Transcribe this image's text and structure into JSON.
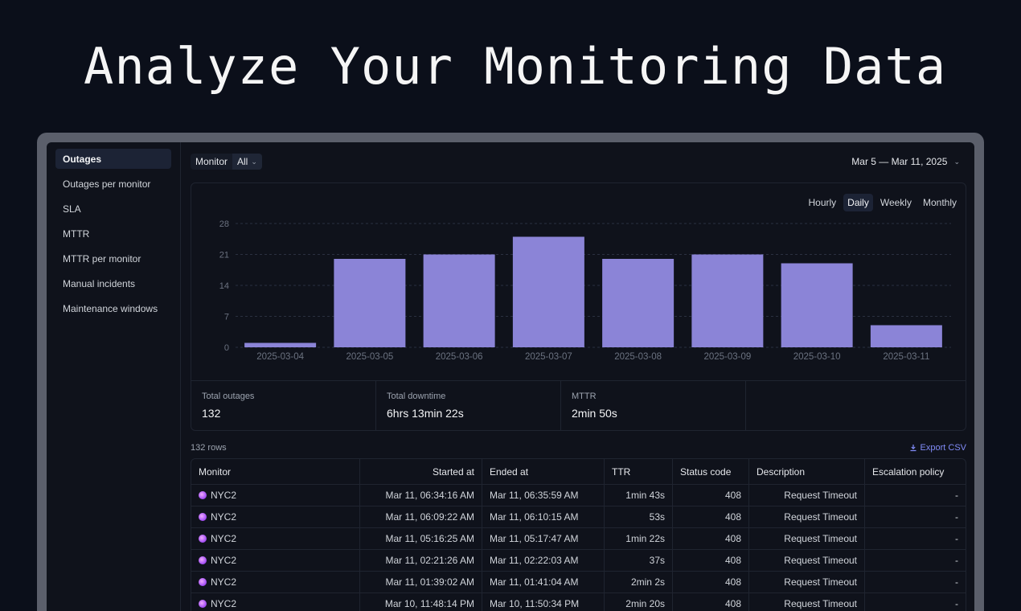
{
  "hero": {
    "title": "Analyze Your Monitoring Data"
  },
  "sidebar": {
    "items": [
      {
        "label": "Outages",
        "active": true
      },
      {
        "label": "Outages per monitor"
      },
      {
        "label": "SLA"
      },
      {
        "label": "MTTR"
      },
      {
        "label": "MTTR per monitor"
      },
      {
        "label": "Manual incidents"
      },
      {
        "label": "Maintenance windows"
      }
    ]
  },
  "toolbar": {
    "monitor_label": "Monitor",
    "monitor_value": "All",
    "date_range": "Mar 5 — Mar 11, 2025"
  },
  "granularity": {
    "options": [
      "Hourly",
      "Daily",
      "Weekly",
      "Monthly"
    ],
    "selected": "Daily"
  },
  "colors": {
    "bar": "#8b84d7",
    "accent": "#818cf8"
  },
  "chart_data": {
    "type": "bar",
    "categories": [
      "2025-03-04",
      "2025-03-05",
      "2025-03-06",
      "2025-03-07",
      "2025-03-08",
      "2025-03-09",
      "2025-03-10",
      "2025-03-11"
    ],
    "values": [
      1,
      20,
      21,
      25,
      20,
      21,
      19,
      5
    ],
    "yticks": [
      0,
      7,
      14,
      21,
      28
    ],
    "ylim": [
      0,
      28
    ],
    "title": "",
    "xlabel": "",
    "ylabel": "",
    "grid": true
  },
  "stats": [
    {
      "label": "Total outages",
      "value": "132"
    },
    {
      "label": "Total downtime",
      "value": "6hrs 13min 22s"
    },
    {
      "label": "MTTR",
      "value": "2min 50s"
    }
  ],
  "table": {
    "rows_count": "132 rows",
    "export_label": "Export CSV",
    "columns": [
      "Monitor",
      "Started at",
      "Ended at",
      "TTR",
      "Status code",
      "Description",
      "Escalation policy"
    ],
    "rows": [
      [
        "NYC2",
        "Mar 11, 06:34:16 AM",
        "Mar 11, 06:35:59 AM",
        "1min 43s",
        "408",
        "Request Timeout",
        "-"
      ],
      [
        "NYC2",
        "Mar 11, 06:09:22 AM",
        "Mar 11, 06:10:15 AM",
        "53s",
        "408",
        "Request Timeout",
        "-"
      ],
      [
        "NYC2",
        "Mar 11, 05:16:25 AM",
        "Mar 11, 05:17:47 AM",
        "1min 22s",
        "408",
        "Request Timeout",
        "-"
      ],
      [
        "NYC2",
        "Mar 11, 02:21:26 AM",
        "Mar 11, 02:22:03 AM",
        "37s",
        "408",
        "Request Timeout",
        "-"
      ],
      [
        "NYC2",
        "Mar 11, 01:39:02 AM",
        "Mar 11, 01:41:04 AM",
        "2min 2s",
        "408",
        "Request Timeout",
        "-"
      ],
      [
        "NYC2",
        "Mar 10, 11:48:14 PM",
        "Mar 10, 11:50:34 PM",
        "2min 20s",
        "408",
        "Request Timeout",
        "-"
      ]
    ]
  }
}
